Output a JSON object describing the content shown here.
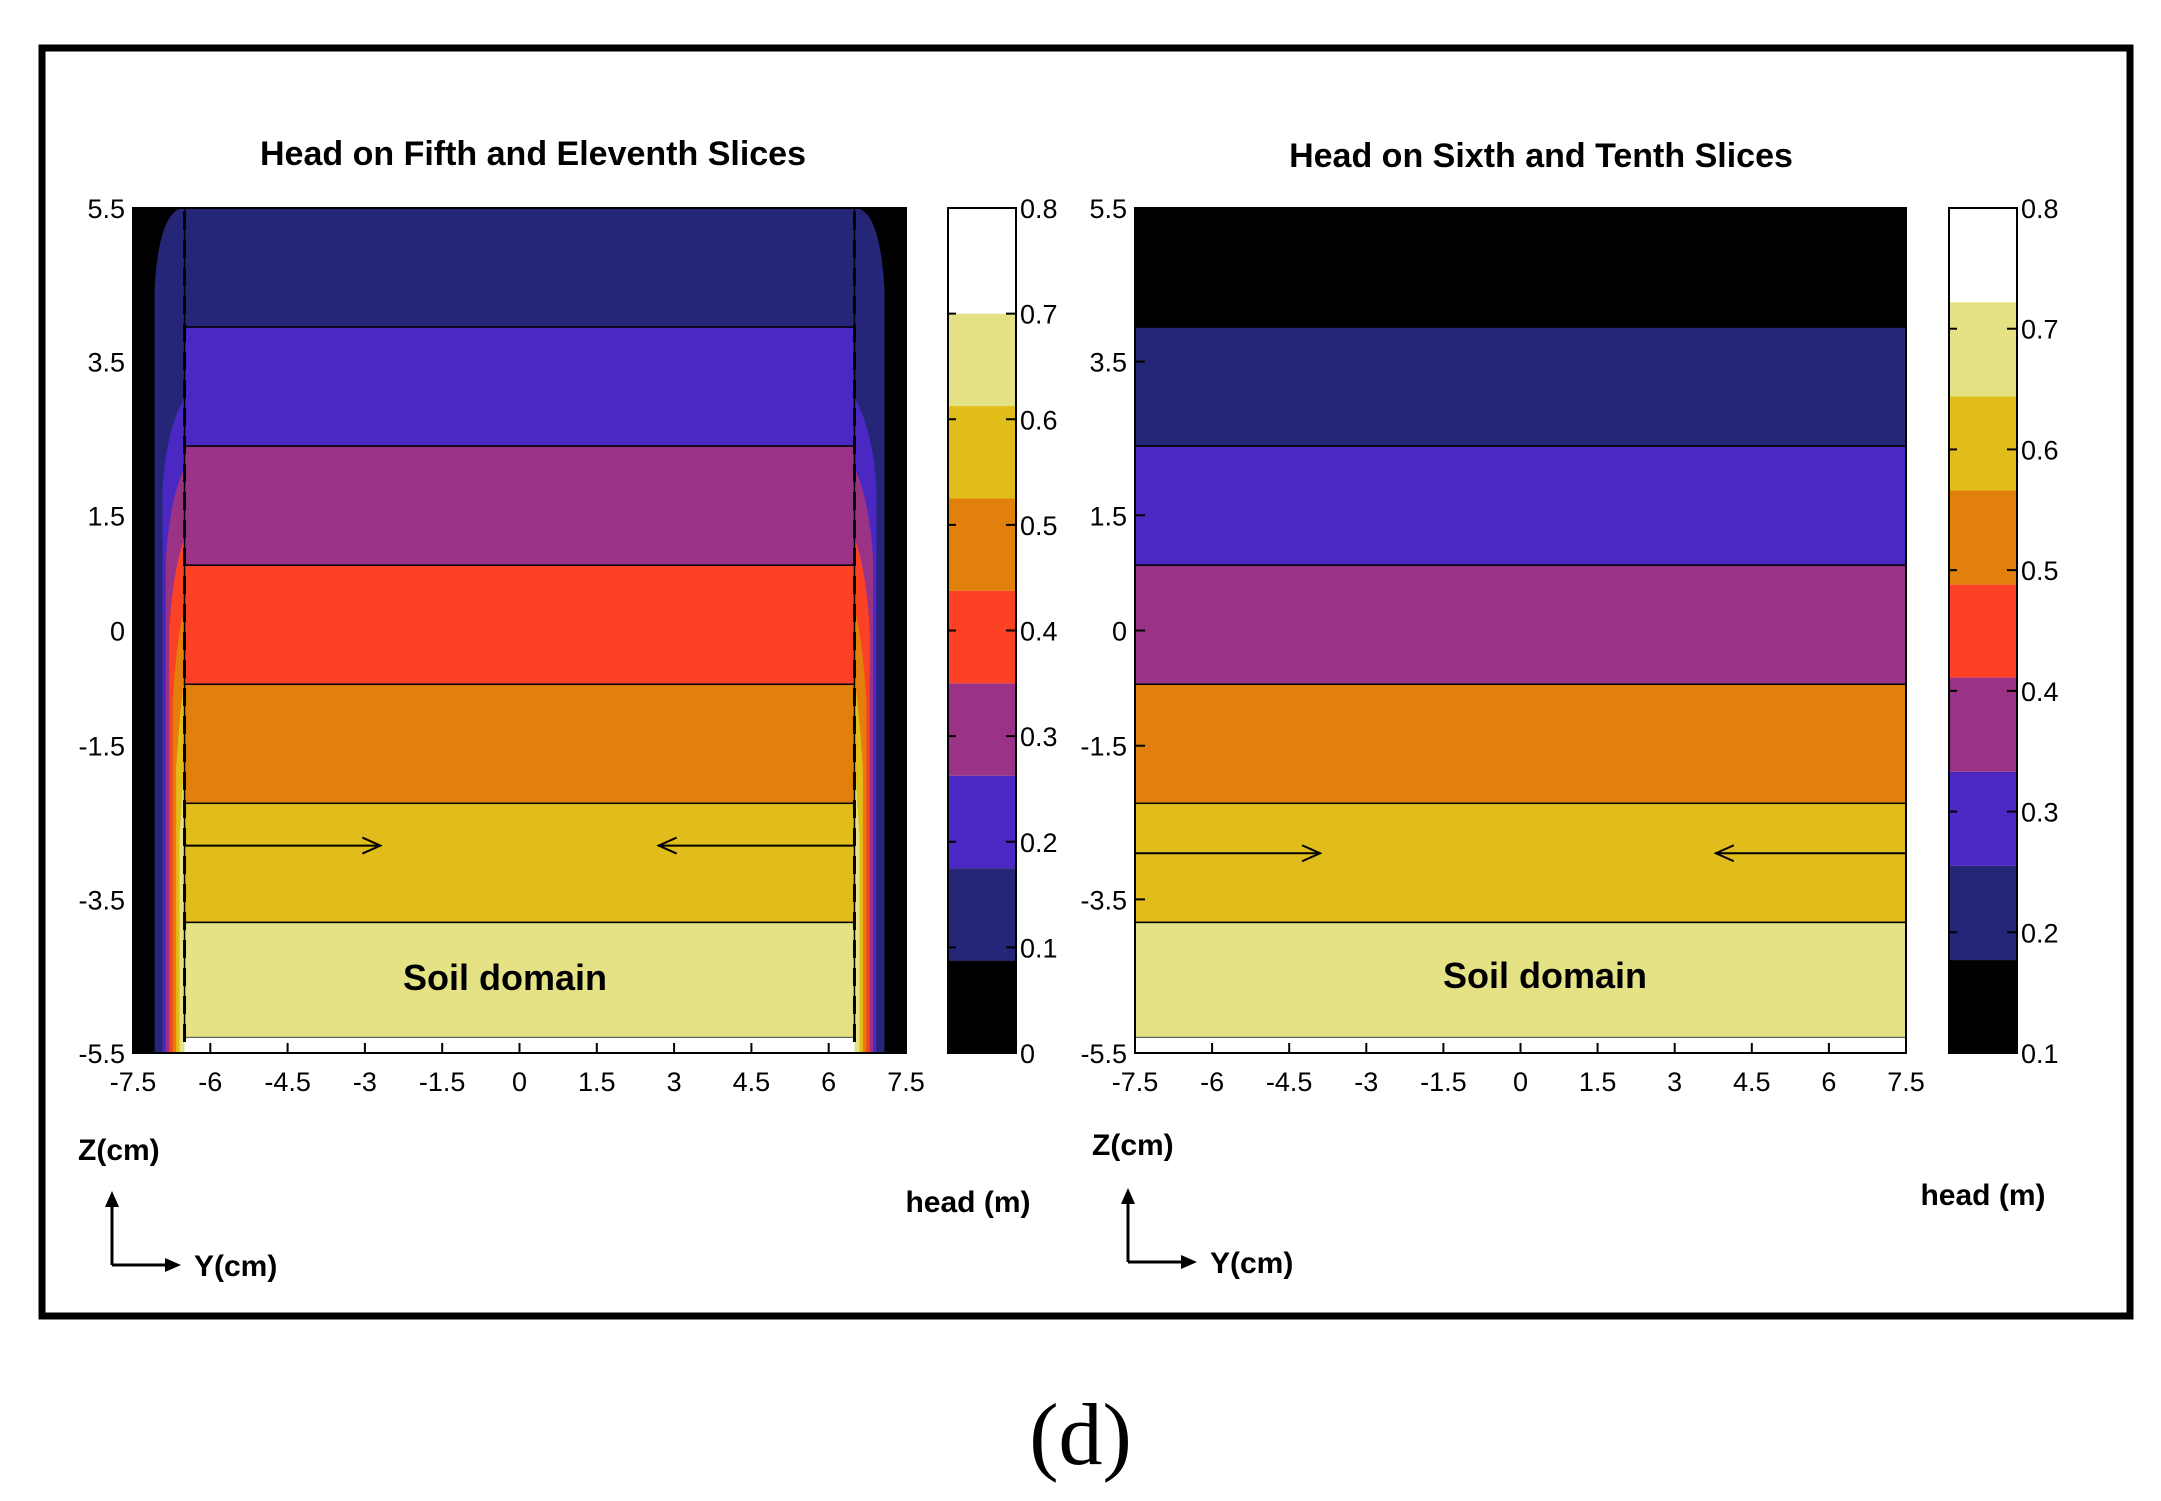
{
  "figure": {
    "caption": "(d)"
  },
  "colors": {
    "levels": [
      "#000000",
      "#252678",
      "#4a28c1",
      "#9a3385",
      "#fc4125",
      "#e1800a",
      "#e1bd1c",
      "#e5e286",
      "#ffffff"
    ],
    "frame": "#000000",
    "tick": "#000000"
  },
  "chart_data": [
    {
      "type": "heatmap",
      "title": "Head on Fifth and Eleventh Slices",
      "xlabel": "Y(cm)",
      "ylabel": "Z(cm)",
      "x_ticks": [
        -7.5,
        -6,
        -4.5,
        -3,
        -1.5,
        0,
        1.5,
        3,
        4.5,
        6,
        7.5
      ],
      "y_ticks": [
        5.5,
        3.5,
        1.5,
        0,
        -1.5,
        -3.5,
        -5.5
      ],
      "xlim": [
        -7.5,
        7.5
      ],
      "ylim": [
        -5.5,
        5.5
      ],
      "soil_domain_y": [
        -6.5,
        6.5
      ],
      "bands": [
        {
          "z_top": 5.5,
          "z_bottom": 3.95,
          "level": 1
        },
        {
          "z_top": 3.95,
          "z_bottom": 2.4,
          "level": 2
        },
        {
          "z_top": 2.4,
          "z_bottom": 0.85,
          "level": 3
        },
        {
          "z_top": 0.85,
          "z_bottom": -0.7,
          "level": 4
        },
        {
          "z_top": -0.7,
          "z_bottom": -2.25,
          "level": 5
        },
        {
          "z_top": -2.25,
          "z_bottom": -3.8,
          "level": 6
        },
        {
          "z_top": -3.8,
          "z_bottom": -5.3,
          "level": 7
        }
      ],
      "annotation": "Soil domain",
      "arrow_z": -2.8,
      "arrows": [
        {
          "from_y": -6.5,
          "to_y": -2.7
        },
        {
          "from_y": 6.5,
          "to_y": 2.7
        }
      ],
      "colorbar": {
        "label": "head (m)",
        "ticks": [
          "0.8",
          "0.7",
          "0.6",
          "0.5",
          "0.4",
          "0.3",
          "0.2",
          "0.1",
          "0"
        ],
        "min": 0,
        "max": 0.8,
        "levels": [
          {
            "from": 0.0,
            "to": 0.0875,
            "level": 0
          },
          {
            "from": 0.0875,
            "to": 0.175,
            "level": 1
          },
          {
            "from": 0.175,
            "to": 0.2625,
            "level": 2
          },
          {
            "from": 0.2625,
            "to": 0.35,
            "level": 3
          },
          {
            "from": 0.35,
            "to": 0.4375,
            "level": 4
          },
          {
            "from": 0.4375,
            "to": 0.525,
            "level": 5
          },
          {
            "from": 0.525,
            "to": 0.6125,
            "level": 6
          },
          {
            "from": 0.6125,
            "to": 0.7,
            "level": 7
          },
          {
            "from": 0.7,
            "to": 0.8,
            "level": 8
          }
        ]
      }
    },
    {
      "type": "heatmap",
      "title": "Head on Sixth and Tenth Slices",
      "xlabel": "Y(cm)",
      "ylabel": "Z(cm)",
      "x_ticks": [
        -7.5,
        -6,
        -4.5,
        -3,
        -1.5,
        0,
        1.5,
        3,
        4.5,
        6,
        7.5
      ],
      "y_ticks": [
        5.5,
        3.5,
        1.5,
        0,
        -1.5,
        -3.5,
        -5.5
      ],
      "xlim": [
        -7.5,
        7.5
      ],
      "ylim": [
        -5.5,
        5.5
      ],
      "bands": [
        {
          "z_top": 5.5,
          "z_bottom": 3.95,
          "level": 0
        },
        {
          "z_top": 3.95,
          "z_bottom": 2.4,
          "level": 1
        },
        {
          "z_top": 2.4,
          "z_bottom": 0.85,
          "level": 2
        },
        {
          "z_top": 0.85,
          "z_bottom": -0.7,
          "level": 3
        },
        {
          "z_top": -0.7,
          "z_bottom": -2.25,
          "level": 5
        },
        {
          "z_top": -2.25,
          "z_bottom": -3.8,
          "level": 6
        },
        {
          "z_top": -3.8,
          "z_bottom": -5.3,
          "level": 7
        }
      ],
      "annotation": "Soil domain",
      "arrow_z": -2.9,
      "arrows": [
        {
          "from_y": -7.5,
          "to_y": -3.9
        },
        {
          "from_y": 7.5,
          "to_y": 3.8
        }
      ],
      "colorbar": {
        "label": "head (m)",
        "ticks": [
          "0.8",
          "0.7",
          "0.6",
          "0.5",
          "0.4",
          "0.3",
          "0.2",
          "0.1"
        ],
        "min": 0.1,
        "max": 0.8,
        "levels": [
          {
            "from": 0.1,
            "to": 0.177,
            "level": 0
          },
          {
            "from": 0.177,
            "to": 0.255,
            "level": 1
          },
          {
            "from": 0.255,
            "to": 0.333,
            "level": 2
          },
          {
            "from": 0.333,
            "to": 0.411,
            "level": 3
          },
          {
            "from": 0.411,
            "to": 0.488,
            "level": 4
          },
          {
            "from": 0.488,
            "to": 0.566,
            "level": 5
          },
          {
            "from": 0.566,
            "to": 0.644,
            "level": 6
          },
          {
            "from": 0.644,
            "to": 0.722,
            "level": 7
          },
          {
            "from": 0.722,
            "to": 0.8,
            "level": 8
          }
        ]
      }
    }
  ]
}
